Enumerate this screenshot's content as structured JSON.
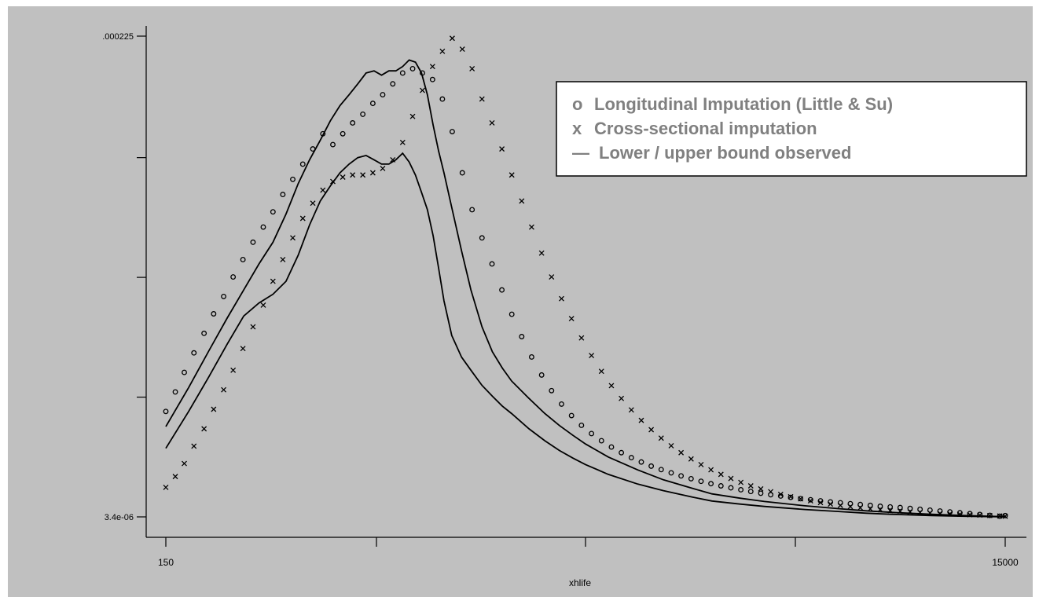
{
  "colors": {
    "figure_background": "#ffffff",
    "plot_background": "#c0c0c0",
    "ink": "#000000",
    "legend_text": "#808080",
    "legend_fill": "#ffffff"
  },
  "chart_data": {
    "type": "scatter",
    "title": "",
    "xlabel": "xhlife",
    "ylabel": "",
    "x_scale": "log",
    "xlim": [
      150,
      15000
    ],
    "ylim": [
      3.4e-06,
      0.000225
    ],
    "xticks": [
      150,
      400,
      1100,
      3000,
      15000
    ],
    "xtick_labels": [
      "150",
      "",
      "",
      "",
      "15000"
    ],
    "yticks": [
      3.4e-06,
      5.86e-05,
      0.0001138,
      0.000169,
      0.000225
    ],
    "ytick_labels": [
      "3.4e-06",
      "",
      "",
      "",
      ".000225"
    ],
    "grid": false,
    "legend_position": "top-right",
    "legend": {
      "entries": [
        {
          "symbol": "o",
          "label": "Longitudinal Imputation (Little & Su)"
        },
        {
          "symbol": "x",
          "label": "Cross-sectional imputation"
        },
        {
          "symbol": "—",
          "label": "Lower / upper bound observed"
        }
      ]
    },
    "series": [
      {
        "marker": "o",
        "x": [
          150,
          158,
          166,
          175,
          185,
          195,
          206,
          217,
          229,
          242,
          256,
          270,
          285,
          301,
          318,
          336,
          355,
          375,
          396,
          418,
          442,
          467,
          493,
          521,
          550,
          581,
          613,
          648,
          684,
          722,
          763,
          805,
          850,
          898,
          948,
          1001,
          1057,
          1116,
          1179,
          1245,
          1315,
          1389,
          1467,
          1550,
          1637,
          1729,
          1826,
          1929,
          2037,
          2151,
          2272,
          2400,
          2534,
          2677,
          2827,
          2985,
          3153,
          3330,
          3517,
          3714,
          3923,
          4143,
          4376,
          4622,
          4881,
          5155,
          5445,
          5750,
          6073,
          6414,
          6774,
          7155,
          7556,
          7981,
          8429,
          8902,
          9402,
          9930,
          10488,
          11077,
          11699,
          12356,
          13050,
          13783,
          14557,
          15000
        ],
        "y": [
          5.2e-05,
          6.1e-05,
          7e-05,
          7.9e-05,
          8.8e-05,
          9.7e-05,
          0.000105,
          0.000114,
          0.000122,
          0.00013,
          0.000137,
          0.000144,
          0.000152,
          0.000159,
          0.000166,
          0.000173,
          0.00018,
          0.000175,
          0.00018,
          0.000185,
          0.000189,
          0.000194,
          0.000198,
          0.000203,
          0.000208,
          0.00021,
          0.000208,
          0.000205,
          0.000196,
          0.000181,
          0.000162,
          0.000145,
          0.000132,
          0.00012,
          0.000108,
          9.68e-05,
          8.65e-05,
          7.71e-05,
          6.88e-05,
          6.16e-05,
          5.54e-05,
          5.01e-05,
          4.56e-05,
          4.18e-05,
          3.85e-05,
          3.56e-05,
          3.3e-05,
          3.07e-05,
          2.87e-05,
          2.68e-05,
          2.52e-05,
          2.37e-05,
          2.23e-05,
          2.1e-05,
          1.98e-05,
          1.87e-05,
          1.77e-05,
          1.68e-05,
          1.59e-05,
          1.51e-05,
          1.43e-05,
          1.36e-05,
          1.3e-05,
          1.24e-05,
          1.18e-05,
          1.13e-05,
          1.08e-05,
          1.03e-05,
          9.9e-06,
          9.5e-06,
          9.1e-06,
          8.7e-06,
          8.3e-06,
          8e-06,
          7.7e-06,
          7.3e-06,
          6.9e-06,
          6.5e-06,
          6.1e-06,
          5.7e-06,
          5.3e-06,
          4.9e-06,
          4.5e-06,
          4.1e-06,
          3.7e-06,
          4e-06
        ]
      },
      {
        "marker": "x",
        "x": [
          150,
          158,
          166,
          175,
          185,
          195,
          206,
          217,
          229,
          242,
          256,
          270,
          285,
          301,
          318,
          336,
          355,
          375,
          396,
          418,
          442,
          467,
          493,
          521,
          550,
          581,
          613,
          648,
          684,
          722,
          763,
          805,
          850,
          898,
          948,
          1001,
          1057,
          1116,
          1179,
          1245,
          1315,
          1389,
          1467,
          1550,
          1637,
          1729,
          1826,
          1929,
          2037,
          2151,
          2272,
          2400,
          2534,
          2677,
          2827,
          2985,
          3153,
          3330,
          3517,
          3714,
          3923,
          4143,
          4376,
          4622,
          4881,
          5155,
          5445,
          5750,
          6073,
          6414,
          6774,
          7155,
          7556,
          7981,
          8429,
          8902,
          9402,
          9930,
          10488,
          11077,
          11699,
          12356,
          13050,
          13783,
          14557,
          15000
        ],
        "y": [
          1.7e-05,
          2.2e-05,
          2.8e-05,
          3.6e-05,
          4.4e-05,
          5.3e-05,
          6.2e-05,
          7.1e-05,
          8.1e-05,
          9.1e-05,
          0.000101,
          0.000112,
          0.000122,
          0.000132,
          0.000141,
          0.000148,
          0.000154,
          0.000158,
          0.00016,
          0.000161,
          0.000161,
          0.000162,
          0.000164,
          0.000168,
          0.000176,
          0.000188,
          0.0002,
          0.000211,
          0.000218,
          0.000224,
          0.000219,
          0.00021,
          0.000196,
          0.000185,
          0.000173,
          0.000161,
          0.000149,
          0.000137,
          0.000125,
          0.000114,
          0.000104,
          9.48e-05,
          8.59e-05,
          7.78e-05,
          7.05e-05,
          6.39e-05,
          5.8e-05,
          5.27e-05,
          4.79e-05,
          4.36e-05,
          3.97e-05,
          3.62e-05,
          3.3e-05,
          3.01e-05,
          2.75e-05,
          2.51e-05,
          2.3e-05,
          2.11e-05,
          1.93e-05,
          1.77e-05,
          1.63e-05,
          1.5e-05,
          1.38e-05,
          1.27e-05,
          1.17e-05,
          1.08e-05,
          1e-05,
          9.3e-06,
          8.7e-06,
          8.1e-06,
          7.6e-06,
          7.1e-06,
          6.7e-06,
          6.3e-06,
          6e-06,
          5.7e-06,
          5.4e-06,
          5.2e-06,
          5e-06,
          4.8e-06,
          4.6e-06,
          4.4e-06,
          4.2e-06,
          4e-06,
          3.8e-06,
          3.7e-06
        ]
      },
      {
        "type": "line",
        "x": [
          150,
          170,
          190,
          210,
          230,
          250,
          270,
          290,
          310,
          330,
          350,
          370,
          390,
          410,
          430,
          450,
          470,
          490,
          510,
          530,
          550,
          570,
          590,
          610,
          630,
          650,
          670,
          690,
          720,
          760,
          800,
          850,
          900,
          950,
          1000,
          1100,
          1200,
          1300,
          1400,
          1500,
          1700,
          2000,
          2300,
          2700,
          3000,
          3500,
          4000,
          5000,
          6000,
          7000,
          8000,
          10000,
          12000,
          15000
        ],
        "y": [
          4.5e-05,
          6.3e-05,
          8e-05,
          9.5e-05,
          0.000108,
          0.00012,
          0.00013,
          0.000143,
          0.000157,
          0.000168,
          0.000177,
          0.000186,
          0.000193,
          0.000198,
          0.000203,
          0.000208,
          0.000209,
          0.000207,
          0.000209,
          0.000209,
          0.000211,
          0.000214,
          0.000213,
          0.000208,
          0.000198,
          0.000184,
          0.000172,
          0.000162,
          0.000146,
          0.000126,
          0.000108,
          9.1e-05,
          7.95e-05,
          7.2e-05,
          6.6e-05,
          5.8e-05,
          5.1e-05,
          4.55e-05,
          4.1e-05,
          3.7e-05,
          3.1e-05,
          2.5e-05,
          2.05e-05,
          1.65e-05,
          1.4e-05,
          1.2e-05,
          1.05e-05,
          8.5e-06,
          7.2e-06,
          6.2e-06,
          5.5e-06,
          4.6e-06,
          4e-06,
          3.5e-06
        ]
      },
      {
        "type": "line",
        "x": [
          150,
          170,
          190,
          210,
          230,
          250,
          270,
          290,
          310,
          330,
          350,
          370,
          390,
          410,
          430,
          450,
          470,
          490,
          510,
          530,
          550,
          570,
          590,
          610,
          630,
          650,
          670,
          690,
          720,
          760,
          800,
          850,
          900,
          950,
          1000,
          1100,
          1200,
          1300,
          1400,
          1500,
          1700,
          2000,
          2300,
          2700,
          3000,
          3500,
          4000,
          5000,
          6000,
          7000,
          8000,
          10000,
          12000,
          15000
        ],
        "y": [
          3.5e-05,
          5.2e-05,
          6.8e-05,
          8.3e-05,
          9.6e-05,
          0.000102,
          0.000106,
          0.000112,
          0.000124,
          0.000138,
          0.000149,
          0.000156,
          0.000162,
          0.000166,
          0.000169,
          0.00017,
          0.000168,
          0.000166,
          0.000166,
          0.000168,
          0.000171,
          0.000167,
          0.000161,
          0.000153,
          0.000145,
          0.000133,
          0.000118,
          0.000103,
          8.7e-05,
          7.7e-05,
          7.1e-05,
          6.4e-05,
          5.9e-05,
          5.45e-05,
          5.1e-05,
          4.4e-05,
          3.85e-05,
          3.4e-05,
          3.05e-05,
          2.75e-05,
          2.3e-05,
          1.85e-05,
          1.55e-05,
          1.25e-05,
          1.07e-05,
          9.3e-06,
          8.2e-06,
          6.8e-06,
          5.9e-06,
          5.1e-06,
          4.6e-06,
          4e-06,
          3.7e-06,
          3.4e-06
        ]
      }
    ]
  }
}
